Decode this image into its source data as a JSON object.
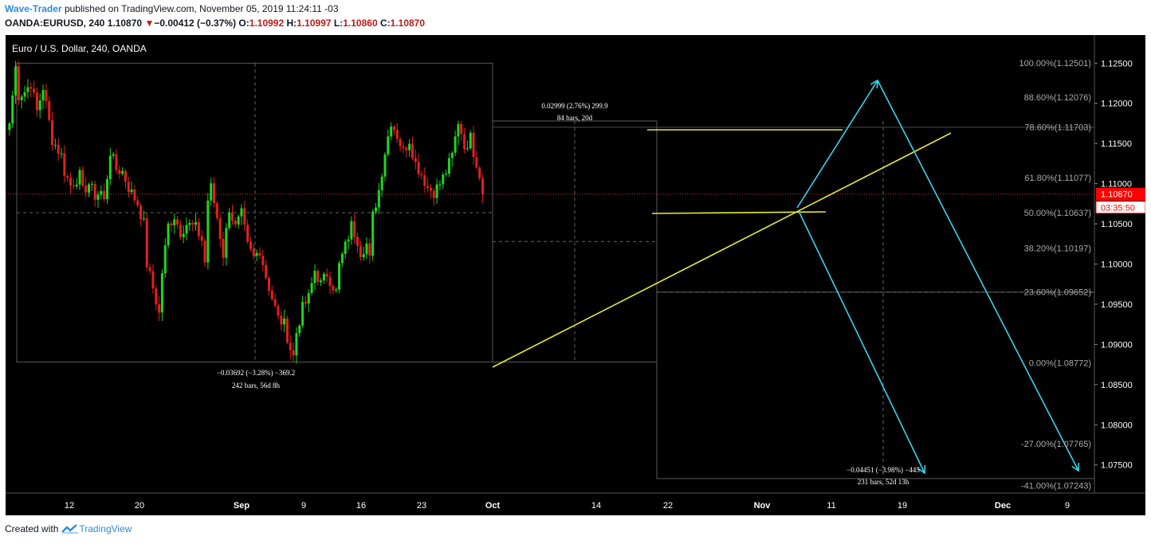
{
  "header": {
    "author": "Wave-Trader",
    "published": "published on TradingView.com, November 05, 2019 11:24:11 -03",
    "symbol": "OANDA:EURUSD, 240",
    "last": "1.10870",
    "change_arrow": "▼",
    "change": "−0.00412 (−0.37%)",
    "o_label": "O:",
    "o": "1.10992",
    "h_label": "H:",
    "h": "1.10997",
    "l_label": "L:",
    "l": "1.10860",
    "c_label": "C:",
    "c": "1.10870"
  },
  "footer": {
    "created_with": "Created with",
    "brand": "TradingView"
  },
  "colors": {
    "up": "#1fd51f",
    "down": "#e0201f",
    "trend": "#e8e83a",
    "wave": "#33d6f0",
    "price_tag": "#ff0000",
    "background": "#000000"
  },
  "chart_data": {
    "type": "candlestick",
    "title": "Euro / U.S. Dollar, 240, OANDA",
    "ylim": [
      1.0715,
      1.1285
    ],
    "y_ticks": [
      "1.12500",
      "1.12000",
      "1.11500",
      "1.11000",
      "1.10500",
      "1.10000",
      "1.09500",
      "1.09000",
      "1.08500",
      "1.08000",
      "1.07500"
    ],
    "x_ticks": [
      "12",
      "20",
      "Sep",
      "9",
      "16",
      "23",
      "Oct",
      "14",
      "22",
      "Nov",
      "11",
      "19",
      "Dec",
      "9"
    ],
    "current_price": "1.10870",
    "countdown": "03:35:50",
    "fib_levels": [
      {
        "label": "100.00%(1.12501)",
        "value": 1.12501
      },
      {
        "label": "88.60%(1.12076)",
        "value": 1.12076
      },
      {
        "label": "78.60%(1.11703)",
        "value": 1.11703
      },
      {
        "label": "61.80%(1.11077)",
        "value": 1.11077
      },
      {
        "label": "50.00%(1.10637)",
        "value": 1.10637
      },
      {
        "label": "38.20%(1.10197)",
        "value": 1.10197
      },
      {
        "label": "23.60%(1.09652)",
        "value": 1.09652
      },
      {
        "label": "0.00%(1.08772)",
        "value": 1.08772
      },
      {
        "label": "-27.00%(1.07765)",
        "value": 1.07765
      },
      {
        "label": "-41.00%(1.07243)",
        "value": 1.07243
      }
    ],
    "measurements": [
      {
        "line1": "−0.03692 (−3.28%) −369.2",
        "line2": "242 bars, 56d 8h"
      },
      {
        "line1": "0.02999 (2.76%) 299.9",
        "line2": "84 bars, 20d"
      },
      {
        "line1": "−0.04451 (−3.98%) −445",
        "line2": "231 bars, 52d 13h"
      }
    ],
    "price_path": [
      [
        0,
        1.1175
      ],
      [
        2,
        1.1245
      ],
      [
        3,
        1.121
      ],
      [
        5,
        1.1215
      ],
      [
        7,
        1.1225
      ],
      [
        9,
        1.119
      ],
      [
        11,
        1.122
      ],
      [
        14,
        1.1155
      ],
      [
        17,
        1.1135
      ],
      [
        18,
        1.1115
      ],
      [
        20,
        1.1098
      ],
      [
        23,
        1.111
      ],
      [
        24,
        1.109
      ],
      [
        26,
        1.11
      ],
      [
        28,
        1.1085
      ],
      [
        30,
        1.109
      ],
      [
        31,
        1.1078
      ],
      [
        33,
        1.114
      ],
      [
        35,
        1.1118
      ],
      [
        37,
        1.1115
      ],
      [
        39,
        1.1095
      ],
      [
        42,
        1.1075
      ],
      [
        44,
        1.105
      ],
      [
        45,
        1.1
      ],
      [
        47,
        1.097
      ],
      [
        49,
        1.0938
      ],
      [
        50,
        1.099
      ],
      [
        52,
        1.1048
      ],
      [
        54,
        1.106
      ],
      [
        56,
        1.104
      ],
      [
        58,
        1.105
      ],
      [
        61,
        1.1045
      ],
      [
        63,
        1.103
      ],
      [
        64,
        1.1002
      ],
      [
        65,
        1.108
      ],
      [
        66,
        1.1095
      ],
      [
        68,
        1.1058
      ],
      [
        70,
        1.1012
      ],
      [
        72,
        1.107
      ],
      [
        74,
        1.1045
      ],
      [
        76,
        1.1062
      ],
      [
        78,
        1.1022
      ],
      [
        80,
        1.1008
      ],
      [
        82,
        1.1018
      ],
      [
        84,
        1.0985
      ],
      [
        86,
        1.0958
      ],
      [
        88,
        1.0932
      ],
      [
        90,
        1.0925
      ],
      [
        92,
        1.0895
      ],
      [
        93,
        1.0885
      ],
      [
        94,
        1.0915
      ],
      [
        96,
        1.0945
      ],
      [
        98,
        1.0958
      ],
      [
        100,
        1.0992
      ],
      [
        102,
        1.0975
      ],
      [
        104,
        1.0988
      ],
      [
        107,
        1.0965
      ],
      [
        108,
        1.0998
      ],
      [
        110,
        1.1022
      ],
      [
        112,
        1.1048
      ],
      [
        114,
        1.103
      ],
      [
        115,
        1.1015
      ],
      [
        117,
        1.1025
      ],
      [
        118,
        1.1005
      ],
      [
        119,
        1.106
      ],
      [
        121,
        1.1092
      ],
      [
        123,
        1.114
      ],
      [
        125,
        1.1178
      ],
      [
        127,
        1.116
      ],
      [
        129,
        1.114
      ],
      [
        131,
        1.1155
      ],
      [
        133,
        1.1125
      ],
      [
        135,
        1.1112
      ],
      [
        137,
        1.1095
      ],
      [
        139,
        1.109
      ],
      [
        141,
        1.11
      ],
      [
        143,
        1.1115
      ],
      [
        145,
        1.1135
      ],
      [
        147,
        1.1178
      ],
      [
        149,
        1.115
      ],
      [
        150,
        1.1138
      ],
      [
        151,
        1.117
      ],
      [
        152,
        1.114
      ],
      [
        154,
        1.111
      ],
      [
        155,
        1.1087
      ]
    ]
  }
}
